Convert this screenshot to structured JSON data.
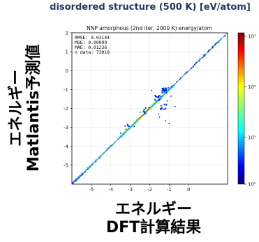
{
  "header": "disordered structure (500 K) [eV/atom]",
  "y_axis_title": [
    "エネルギー",
    "Matlantis予測値"
  ],
  "x_axis_title": [
    "エネルギー",
    "DFT計算結果"
  ],
  "chart_data": {
    "type": "scatter",
    "title": "NNP amorphous (2nd iter, 2000 K) energy/atom",
    "xlim": [
      -6,
      2
    ],
    "ylim": [
      -6,
      2
    ],
    "x_ticks": [
      -5,
      -4,
      -3,
      -2,
      -1,
      0
    ],
    "y_ticks": [
      2,
      1,
      0,
      -1,
      -2,
      -3,
      -4,
      -5
    ],
    "stats": [
      "RMSE: 0.03144",
      "MSE: 0.00099",
      "MAE: 0.01236",
      "n data: 73019"
    ],
    "reference_line": "y = x",
    "colorbar": {
      "scale": "log",
      "ticks": [
        "10³",
        "10²",
        "10¹",
        "10⁰"
      ],
      "colormap": "jet"
    },
    "density_bands": [
      {
        "x_range": [
          -6.0,
          -5.4
        ],
        "count_level": 1
      },
      {
        "x_range": [
          -5.4,
          -3.4
        ],
        "count_level": 1.5
      },
      {
        "x_range": [
          -3.4,
          -2.6
        ],
        "count_level": 2
      },
      {
        "x_range": [
          -2.6,
          -1.9
        ],
        "count_level": 2.6
      },
      {
        "x_range": [
          -1.9,
          -1.5
        ],
        "count_level": 2.2
      },
      {
        "x_range": [
          -1.5,
          -0.8
        ],
        "count_level": 1.6
      },
      {
        "x_range": [
          -0.8,
          1.9
        ],
        "count_level": 1
      }
    ],
    "outlier_clusters": [
      {
        "x": -1.25,
        "y": -1.05,
        "spread": 0.25,
        "n": 35
      },
      {
        "x": -1.6,
        "y": -1.45,
        "spread": 0.3,
        "n": 18
      },
      {
        "x": -1.3,
        "y": -1.9,
        "spread": 0.35,
        "n": 14
      },
      {
        "x": -2.2,
        "y": -2.1,
        "spread": 0.35,
        "n": 10
      },
      {
        "x": -3.2,
        "y": -3.0,
        "spread": 0.3,
        "n": 6
      }
    ],
    "outliers": [
      {
        "x": -1.2,
        "y": -2.65
      },
      {
        "x": -1.55,
        "y": -2.3
      },
      {
        "x": -1.0,
        "y": -2.8
      },
      {
        "x": -0.7,
        "y": -1.9
      },
      {
        "x": -2.5,
        "y": -2.2
      },
      {
        "x": -1.9,
        "y": -1.05
      },
      {
        "x": -0.9,
        "y": -1.35
      },
      {
        "x": -1.5,
        "y": -2.45
      },
      {
        "x": -1.1,
        "y": -1.6
      },
      {
        "x": -3.5,
        "y": -3.3
      },
      {
        "x": -2.8,
        "y": -2.95
      },
      {
        "x": -1.05,
        "y": -0.9
      }
    ]
  }
}
